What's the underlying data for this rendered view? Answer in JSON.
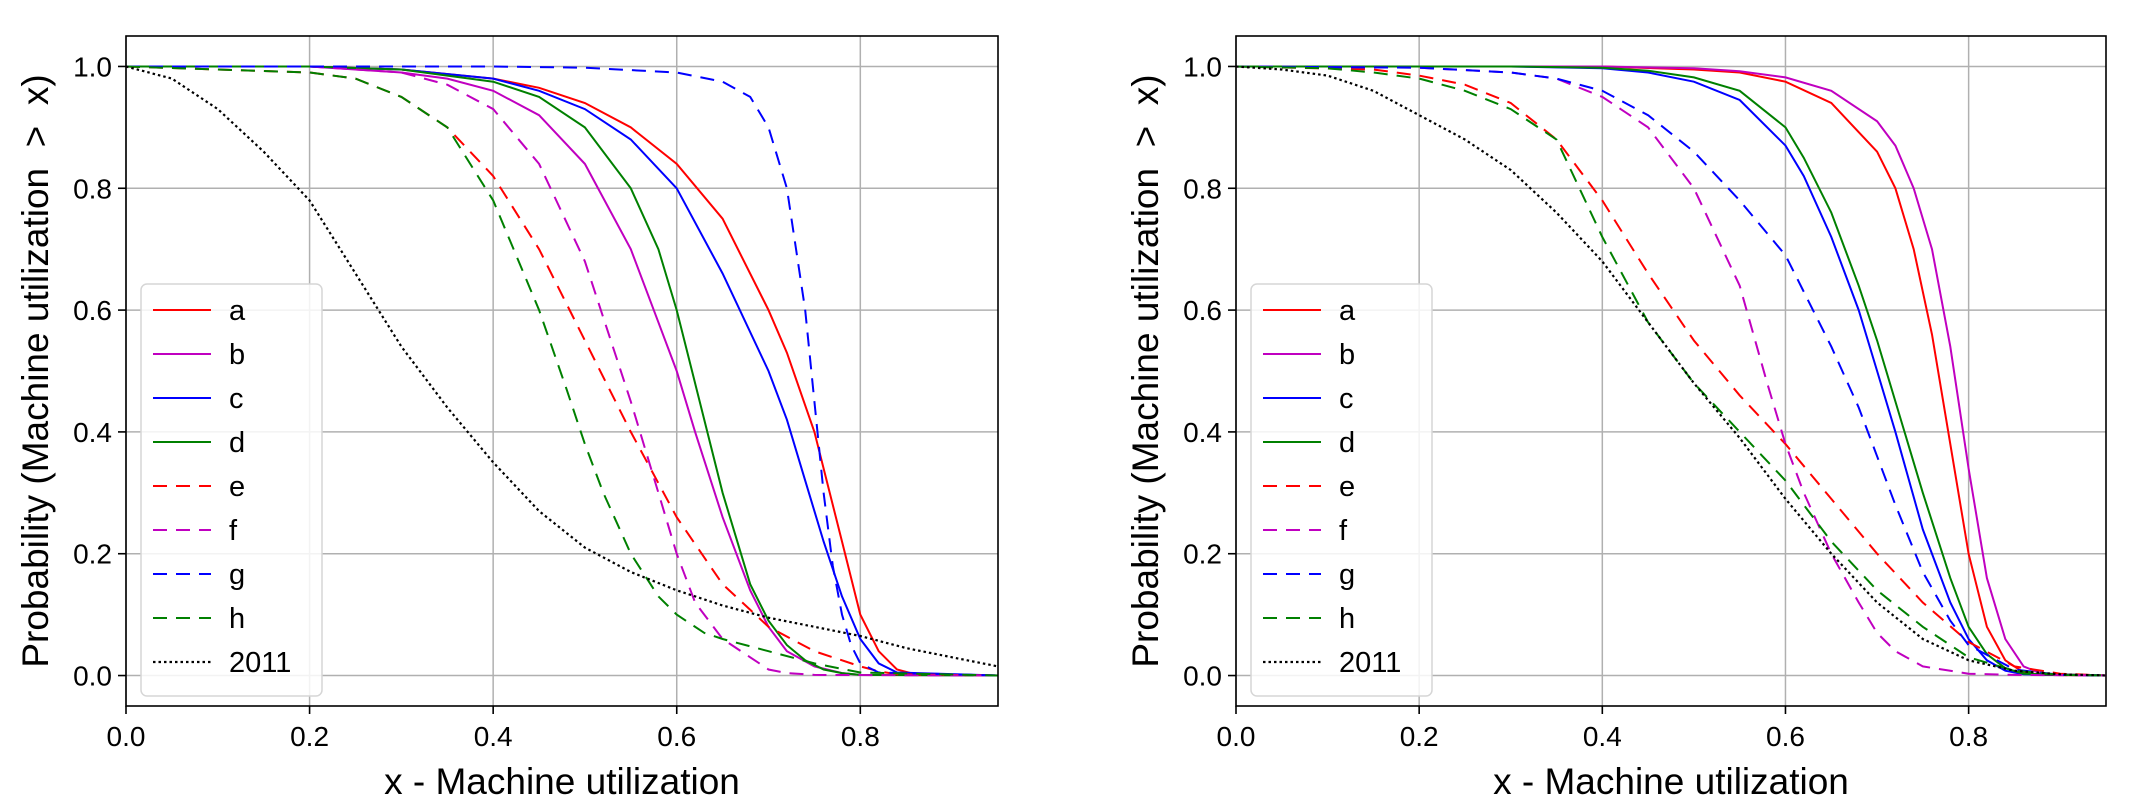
{
  "chart_data": [
    {
      "type": "line",
      "xlabel": "x - Machine utilization",
      "ylabel": "Probability (Machine utilization  >  x)",
      "xlim": [
        0.0,
        0.95
      ],
      "ylim": [
        -0.05,
        1.05
      ],
      "xticks": [
        "0.0",
        "0.2",
        "0.4",
        "0.6",
        "0.8"
      ],
      "yticks": [
        "0.0",
        "0.2",
        "0.4",
        "0.6",
        "0.8",
        "1.0"
      ],
      "grid": true,
      "legend_position": "lower-left",
      "series": [
        {
          "name": "a",
          "color": "#ff0000",
          "dash": "solid",
          "x": [
            0,
            0.2,
            0.3,
            0.4,
            0.45,
            0.5,
            0.55,
            0.6,
            0.65,
            0.7,
            0.72,
            0.75,
            0.78,
            0.8,
            0.82,
            0.84,
            0.86,
            0.95
          ],
          "y": [
            1,
            1,
            0.995,
            0.98,
            0.965,
            0.94,
            0.9,
            0.84,
            0.75,
            0.6,
            0.53,
            0.4,
            0.22,
            0.1,
            0.04,
            0.01,
            0.002,
            0
          ]
        },
        {
          "name": "b",
          "color": "#c000c0",
          "dash": "solid",
          "x": [
            0,
            0.2,
            0.3,
            0.35,
            0.4,
            0.45,
            0.5,
            0.55,
            0.58,
            0.6,
            0.62,
            0.65,
            0.68,
            0.7,
            0.72,
            0.75,
            0.78,
            0.8,
            0.95
          ],
          "y": [
            1,
            1,
            0.99,
            0.98,
            0.96,
            0.92,
            0.84,
            0.7,
            0.58,
            0.5,
            0.4,
            0.26,
            0.14,
            0.08,
            0.04,
            0.015,
            0.004,
            0.001,
            0
          ]
        },
        {
          "name": "c",
          "color": "#0000ff",
          "dash": "solid",
          "x": [
            0,
            0.2,
            0.3,
            0.4,
            0.45,
            0.5,
            0.55,
            0.6,
            0.65,
            0.7,
            0.72,
            0.74,
            0.76,
            0.78,
            0.8,
            0.82,
            0.84,
            0.95
          ],
          "y": [
            1,
            1,
            0.995,
            0.98,
            0.96,
            0.93,
            0.88,
            0.8,
            0.66,
            0.5,
            0.42,
            0.32,
            0.22,
            0.13,
            0.06,
            0.02,
            0.005,
            0
          ]
        },
        {
          "name": "d",
          "color": "#008000",
          "dash": "solid",
          "x": [
            0,
            0.2,
            0.3,
            0.4,
            0.45,
            0.5,
            0.55,
            0.58,
            0.6,
            0.62,
            0.65,
            0.68,
            0.7,
            0.72,
            0.74,
            0.76,
            0.78,
            0.8,
            0.95
          ],
          "y": [
            1,
            1,
            0.995,
            0.975,
            0.95,
            0.9,
            0.8,
            0.7,
            0.6,
            0.48,
            0.3,
            0.15,
            0.09,
            0.05,
            0.025,
            0.01,
            0.004,
            0.001,
            0
          ]
        },
        {
          "name": "e",
          "color": "#ff0000",
          "dash": "dashed",
          "x": [
            0,
            0.2,
            0.25,
            0.3,
            0.35,
            0.4,
            0.45,
            0.5,
            0.55,
            0.6,
            0.65,
            0.7,
            0.75,
            0.8,
            0.82,
            0.84,
            0.95
          ],
          "y": [
            1,
            0.99,
            0.98,
            0.95,
            0.9,
            0.82,
            0.7,
            0.55,
            0.4,
            0.26,
            0.15,
            0.08,
            0.04,
            0.015,
            0.007,
            0.002,
            0
          ]
        },
        {
          "name": "f",
          "color": "#c000c0",
          "dash": "dashed",
          "x": [
            0,
            0.2,
            0.3,
            0.35,
            0.4,
            0.45,
            0.5,
            0.55,
            0.58,
            0.6,
            0.62,
            0.65,
            0.68,
            0.7,
            0.72,
            0.75,
            0.95
          ],
          "y": [
            1,
            1,
            0.99,
            0.97,
            0.93,
            0.84,
            0.68,
            0.45,
            0.3,
            0.2,
            0.12,
            0.06,
            0.03,
            0.01,
            0.004,
            0.001,
            0
          ]
        },
        {
          "name": "g",
          "color": "#0000ff",
          "dash": "dashed",
          "x": [
            0,
            0.2,
            0.4,
            0.5,
            0.6,
            0.65,
            0.68,
            0.7,
            0.72,
            0.74,
            0.75,
            0.76,
            0.77,
            0.78,
            0.79,
            0.8,
            0.82,
            0.95
          ],
          "y": [
            1,
            1,
            1,
            0.998,
            0.99,
            0.975,
            0.95,
            0.9,
            0.8,
            0.6,
            0.45,
            0.3,
            0.18,
            0.1,
            0.05,
            0.02,
            0.005,
            0
          ]
        },
        {
          "name": "h",
          "color": "#008000",
          "dash": "dashed",
          "x": [
            0,
            0.2,
            0.25,
            0.3,
            0.35,
            0.4,
            0.45,
            0.48,
            0.5,
            0.52,
            0.55,
            0.58,
            0.6,
            0.63,
            0.65,
            0.7,
            0.75,
            0.8,
            0.95
          ],
          "y": [
            1,
            0.99,
            0.98,
            0.95,
            0.9,
            0.78,
            0.6,
            0.47,
            0.38,
            0.3,
            0.2,
            0.13,
            0.1,
            0.07,
            0.06,
            0.04,
            0.02,
            0.005,
            0
          ]
        },
        {
          "name": "2011",
          "color": "#000000",
          "dash": "dotted",
          "x": [
            0,
            0.05,
            0.1,
            0.15,
            0.2,
            0.25,
            0.3,
            0.35,
            0.4,
            0.45,
            0.5,
            0.55,
            0.6,
            0.65,
            0.7,
            0.75,
            0.8,
            0.85,
            0.9,
            0.95
          ],
          "y": [
            1,
            0.98,
            0.93,
            0.86,
            0.78,
            0.66,
            0.54,
            0.44,
            0.35,
            0.27,
            0.21,
            0.17,
            0.14,
            0.115,
            0.095,
            0.08,
            0.065,
            0.045,
            0.03,
            0.015
          ]
        }
      ]
    },
    {
      "type": "line",
      "xlabel": "x - Machine utilization",
      "ylabel": "Probability (Machine utilization  >  x)",
      "xlim": [
        0.0,
        0.95
      ],
      "ylim": [
        -0.05,
        1.05
      ],
      "xticks": [
        "0.0",
        "0.2",
        "0.4",
        "0.6",
        "0.8"
      ],
      "yticks": [
        "0.0",
        "0.2",
        "0.4",
        "0.6",
        "0.8",
        "1.0"
      ],
      "grid": true,
      "legend_position": "lower-left",
      "series": [
        {
          "name": "a",
          "color": "#ff0000",
          "dash": "solid",
          "x": [
            0,
            0.3,
            0.4,
            0.5,
            0.55,
            0.6,
            0.65,
            0.7,
            0.72,
            0.74,
            0.76,
            0.78,
            0.8,
            0.82,
            0.84,
            0.86,
            0.88,
            0.95
          ],
          "y": [
            1,
            1,
            1,
            0.995,
            0.99,
            0.975,
            0.94,
            0.86,
            0.8,
            0.7,
            0.56,
            0.38,
            0.2,
            0.08,
            0.025,
            0.005,
            0.001,
            0
          ]
        },
        {
          "name": "b",
          "color": "#c000c0",
          "dash": "solid",
          "x": [
            0,
            0.3,
            0.4,
            0.5,
            0.55,
            0.6,
            0.65,
            0.7,
            0.72,
            0.74,
            0.76,
            0.78,
            0.8,
            0.82,
            0.84,
            0.86,
            0.88,
            0.95
          ],
          "y": [
            1,
            1,
            1,
            0.997,
            0.992,
            0.982,
            0.96,
            0.91,
            0.87,
            0.8,
            0.7,
            0.54,
            0.34,
            0.16,
            0.06,
            0.015,
            0.003,
            0
          ]
        },
        {
          "name": "c",
          "color": "#0000ff",
          "dash": "solid",
          "x": [
            0,
            0.3,
            0.4,
            0.45,
            0.5,
            0.55,
            0.6,
            0.62,
            0.65,
            0.68,
            0.7,
            0.72,
            0.75,
            0.78,
            0.8,
            0.82,
            0.84,
            0.86,
            0.95
          ],
          "y": [
            1,
            1,
            0.997,
            0.99,
            0.975,
            0.945,
            0.87,
            0.82,
            0.72,
            0.6,
            0.5,
            0.4,
            0.24,
            0.12,
            0.06,
            0.025,
            0.008,
            0.002,
            0
          ]
        },
        {
          "name": "d",
          "color": "#008000",
          "dash": "solid",
          "x": [
            0,
            0.3,
            0.4,
            0.45,
            0.5,
            0.55,
            0.6,
            0.62,
            0.65,
            0.68,
            0.7,
            0.72,
            0.75,
            0.78,
            0.8,
            0.82,
            0.84,
            0.86,
            0.95
          ],
          "y": [
            1,
            1,
            0.998,
            0.993,
            0.982,
            0.96,
            0.9,
            0.85,
            0.76,
            0.64,
            0.55,
            0.45,
            0.3,
            0.16,
            0.08,
            0.035,
            0.012,
            0.003,
            0
          ]
        },
        {
          "name": "e",
          "color": "#ff0000",
          "dash": "dashed",
          "x": [
            0,
            0.15,
            0.2,
            0.25,
            0.3,
            0.35,
            0.4,
            0.45,
            0.5,
            0.55,
            0.6,
            0.65,
            0.7,
            0.75,
            0.8,
            0.85,
            0.9,
            0.95
          ],
          "y": [
            1,
            0.995,
            0.985,
            0.97,
            0.94,
            0.88,
            0.78,
            0.66,
            0.55,
            0.46,
            0.38,
            0.29,
            0.2,
            0.12,
            0.055,
            0.015,
            0.003,
            0
          ]
        },
        {
          "name": "f",
          "color": "#c000c0",
          "dash": "dashed",
          "x": [
            0,
            0.2,
            0.3,
            0.35,
            0.4,
            0.45,
            0.5,
            0.55,
            0.58,
            0.6,
            0.62,
            0.65,
            0.68,
            0.7,
            0.72,
            0.75,
            0.8,
            0.85,
            0.95
          ],
          "y": [
            1,
            0.998,
            0.99,
            0.98,
            0.95,
            0.9,
            0.8,
            0.64,
            0.48,
            0.38,
            0.3,
            0.2,
            0.12,
            0.07,
            0.04,
            0.015,
            0.003,
            0.001,
            0
          ]
        },
        {
          "name": "g",
          "color": "#0000ff",
          "dash": "dashed",
          "x": [
            0,
            0.2,
            0.3,
            0.35,
            0.4,
            0.45,
            0.5,
            0.55,
            0.6,
            0.62,
            0.65,
            0.68,
            0.7,
            0.72,
            0.75,
            0.78,
            0.8,
            0.85,
            0.9,
            0.95
          ],
          "y": [
            1,
            0.998,
            0.99,
            0.98,
            0.96,
            0.92,
            0.86,
            0.78,
            0.69,
            0.63,
            0.54,
            0.44,
            0.36,
            0.28,
            0.17,
            0.09,
            0.05,
            0.01,
            0.001,
            0
          ]
        },
        {
          "name": "h",
          "color": "#008000",
          "dash": "dashed",
          "x": [
            0,
            0.1,
            0.15,
            0.2,
            0.25,
            0.3,
            0.35,
            0.4,
            0.45,
            0.5,
            0.55,
            0.6,
            0.65,
            0.7,
            0.75,
            0.8,
            0.85,
            0.9,
            0.95
          ],
          "y": [
            1,
            0.997,
            0.99,
            0.98,
            0.96,
            0.93,
            0.88,
            0.72,
            0.58,
            0.48,
            0.4,
            0.32,
            0.22,
            0.14,
            0.08,
            0.03,
            0.008,
            0.001,
            0
          ]
        },
        {
          "name": "2011",
          "color": "#000000",
          "dash": "dotted",
          "x": [
            0,
            0.05,
            0.1,
            0.15,
            0.2,
            0.25,
            0.3,
            0.35,
            0.4,
            0.45,
            0.5,
            0.55,
            0.6,
            0.65,
            0.7,
            0.75,
            0.8,
            0.85,
            0.9,
            0.95
          ],
          "y": [
            1,
            0.995,
            0.985,
            0.96,
            0.92,
            0.88,
            0.83,
            0.76,
            0.68,
            0.58,
            0.48,
            0.39,
            0.29,
            0.2,
            0.12,
            0.06,
            0.025,
            0.008,
            0.002,
            0
          ]
        }
      ]
    }
  ]
}
